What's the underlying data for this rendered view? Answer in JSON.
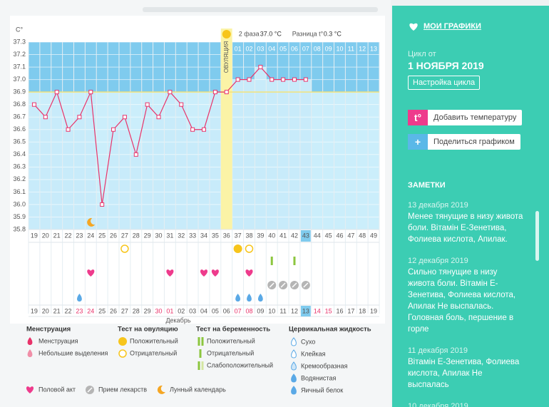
{
  "chart_data": {
    "type": "line",
    "y_axis_label": "C°",
    "ovulation_label": "ОВУЛЯЦИЯ",
    "phase_label": "2 фаза",
    "phase_value": "37.0 °C",
    "diff_label": "Разница t°",
    "diff_value": "0.3 °C",
    "categories": [
      "19",
      "20",
      "21",
      "22",
      "23",
      "24",
      "25",
      "26",
      "27",
      "28",
      "29",
      "30",
      "31",
      "32",
      "33",
      "34",
      "35",
      "36",
      "37",
      "38",
      "39",
      "40",
      "41",
      "42",
      "43",
      "44",
      "45",
      "46",
      "47",
      "48",
      "49"
    ],
    "values": [
      36.8,
      36.7,
      36.9,
      36.6,
      36.7,
      36.9,
      36.0,
      36.6,
      36.7,
      36.4,
      36.8,
      36.7,
      36.9,
      36.8,
      36.6,
      36.6,
      36.9,
      36.9,
      37.0,
      37.0,
      37.1,
      37.0,
      37.0,
      37.0,
      37.0,
      null,
      null,
      null,
      null,
      null,
      null
    ],
    "color": "#e8336a",
    "coverline": 36.9,
    "coverline_color": "#f3e27a",
    "ylim": [
      35.8,
      37.3
    ],
    "yticks": [
      35.8,
      35.9,
      {
        "value": 36,
        "label": "36.0"
      },
      36.1,
      36.2,
      36.3,
      36.4,
      36.5,
      36.6,
      36.7,
      36.8,
      36.9,
      {
        "value": 37,
        "label": "37.0"
      },
      37.1,
      37.2,
      37.3
    ],
    "top_dates": [
      "01",
      "02",
      "03",
      "04",
      "05",
      "06",
      "07",
      "08",
      "09",
      "10",
      "11",
      "12",
      "13"
    ],
    "bottom_dates": [
      "19",
      "20",
      "21",
      "22",
      "23",
      "24",
      "25",
      "26",
      "27",
      "28",
      "29",
      "30",
      "01",
      "02",
      "03",
      "04",
      "05",
      "06",
      "07",
      "08",
      "09",
      "10",
      "11",
      "12",
      "13",
      "14",
      "15",
      "16",
      "17",
      "18",
      "19"
    ],
    "month_label": "Декабрь"
  },
  "legend": {
    "menstruation": {
      "title": "Менструация",
      "items": [
        "Менструация",
        "Небольшие выделения"
      ]
    },
    "ovulation_test": {
      "title": "Тест на овуляцию",
      "items": [
        "Положительный",
        "Отрицательный"
      ]
    },
    "pregnancy_test": {
      "title": "Тест на беременность",
      "items": [
        "Положительный",
        "Отрицательный",
        "Слабоположительный"
      ]
    },
    "cervical_fluid": {
      "title": "Цервикальная жидкость",
      "items": [
        "Сухо",
        "Клейкая",
        "Кремообразная",
        "Водянистая",
        "Яичный белок"
      ]
    },
    "other": [
      "Половой акт",
      "Прием лекарств",
      "Лунный календарь"
    ]
  },
  "sidebar": {
    "my_charts": "МОИ ГРАФИКИ",
    "cycle_from": "Цикл от",
    "cycle_date": "1 НОЯБРЯ 2019",
    "cycle_settings": "Настройка цикла",
    "temp_icon": "t°",
    "add_temperature": "Добавить температуру",
    "share_chart": "Поделиться графиком",
    "notes_title": "ЗАМЕТКИ",
    "notes": [
      {
        "date": "13 декабря 2019",
        "text": "Менее тянущие в низу живота боли. Вітамін Е-Зенетива, Фолиева кислота, Апилак."
      },
      {
        "date": "12 декабря 2019",
        "text": "Сильно тянущие в низу живота боли. Вітамін Е-Зенетива, Фолиева кислота, Апилак Не выспалась. Головная боль, першение в горле"
      },
      {
        "date": "11 декабря 2019",
        "text": "Вітамін Е-Зенетива, Фолиева кислота, Апилак Не выспалась"
      },
      {
        "date": "10 декабря 2019",
        "text": ""
      }
    ]
  }
}
